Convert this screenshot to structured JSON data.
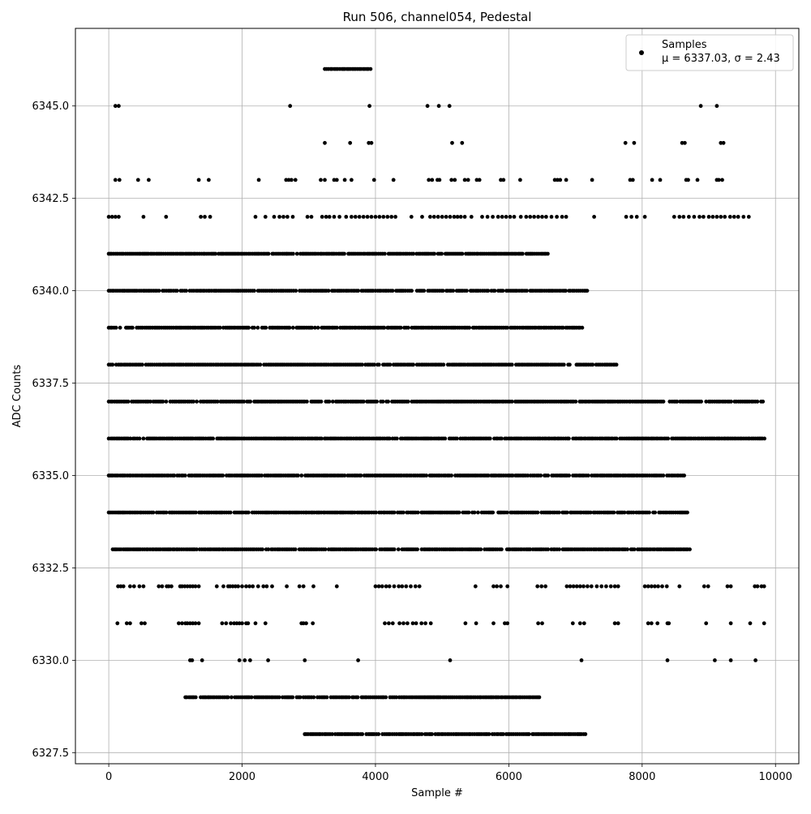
{
  "chart_data": {
    "type": "scatter",
    "title": "Run 506, channel054, Pedestal",
    "xlabel": "Sample #",
    "ylabel": "ADC Counts",
    "xlim": [
      -500,
      10350
    ],
    "ylim": [
      6327.2,
      6347.1
    ],
    "xticks": [
      0,
      2000,
      4000,
      6000,
      8000,
      10000
    ],
    "xtick_labels": [
      "0",
      "2000",
      "4000",
      "6000",
      "8000",
      "10000"
    ],
    "yticks": [
      6327.5,
      6330.0,
      6332.5,
      6335.0,
      6337.5,
      6340.0,
      6342.5,
      6345.0
    ],
    "ytick_labels": [
      "6327.5",
      "6330.0",
      "6332.5",
      "6335.0",
      "6337.5",
      "6340.0",
      "6342.5",
      "6345.0"
    ],
    "grid": true,
    "legend_position": "top-right",
    "legend": {
      "label": "Samples",
      "stats": "μ = 6337.03, σ = 2.43"
    },
    "series": [
      {
        "name": "Samples",
        "color": "#000000",
        "x_range": [
          0,
          9850
        ],
        "levels": [
          {
            "y": 6328,
            "x": [
              2940,
              7150
            ]
          },
          {
            "y": 6329,
            "x": [
              1150,
              1870,
              2950,
              6470
            ]
          },
          {
            "y": 6330,
            "x": [
              1220,
              1250,
              1400,
              1960,
              2040,
              2120,
              2390,
              2940,
              3740,
              5120,
              7090,
              8380,
              9090,
              9330,
              9700
            ]
          },
          {
            "y": 6331,
            "x": [
              130,
              270,
              320,
              490,
              540,
              1050,
              1100,
              1150,
              1180,
              1220,
              1260,
              1300,
              1350,
              1700,
              1760,
              1830,
              1880,
              1920,
              1960,
              2000,
              2060,
              2090,
              2200,
              2350,
              2890,
              2920,
              2960,
              3060,
              4140,
              4200,
              4260,
              4360,
              4420,
              4480,
              4560,
              4610,
              4690,
              4750,
              4830,
              5350,
              5510,
              5770,
              5940,
              5980,
              6440,
              6500,
              6960,
              7070,
              7130,
              7590,
              7640,
              8090,
              8140,
              8230,
              8380,
              8400,
              8960,
              9330,
              9620,
              9830
            ]
          },
          {
            "y": 6332,
            "x": [
              140,
              180,
              220,
              320,
              380,
              460,
              520,
              750,
              800,
              870,
              900,
              940,
              1070,
              1100,
              1140,
              1180,
              1220,
              1260,
              1300,
              1350,
              1620,
              1720,
              1790,
              1820,
              1860,
              1900,
              1940,
              2000,
              2060,
              2110,
              2160,
              2240,
              2320,
              2370,
              2450,
              2670,
              2860,
              2920,
              3070,
              3420,
              4000,
              4050,
              4100,
              4160,
              4210,
              4280,
              4350,
              4400,
              4460,
              4530,
              4600,
              4660,
              5500,
              5770,
              5820,
              5880,
              5980,
              6430,
              6490,
              6550,
              6870,
              6920,
              6970,
              7020,
              7070,
              7120,
              7180,
              7240,
              7320,
              7390,
              7460,
              7530,
              7590,
              7640,
              8040,
              8090,
              8140,
              8190,
              8240,
              8300,
              8370,
              8560,
              8930,
              8990,
              9280,
              9330,
              9690,
              9730,
              9790,
              9830
            ]
          },
          {
            "y": 6333,
            "x": [
              60,
              1840,
              2430,
              4290,
              4630,
              7400,
              8730
            ]
          },
          {
            "y": 6334,
            "x": [
              0,
              3000,
              3570,
              5100,
              5150,
              6200,
              8700
            ]
          },
          {
            "y": 6335,
            "x": [
              0,
              4200,
              6330,
              8630
            ]
          },
          {
            "y": 6336,
            "x": [
              0,
              9840
            ]
          },
          {
            "y": 6337,
            "x": [
              0,
              9840
            ]
          },
          {
            "y": 6338,
            "x": [
              0,
              1240,
              7620
            ]
          },
          {
            "y": 6339,
            "x": [
              0,
              7110
            ]
          },
          {
            "y": 6340,
            "x": [
              0,
              2220,
              7210
            ]
          },
          {
            "y": 6341,
            "x": [
              0,
              1180,
              1760,
              2120,
              4420,
              5000,
              6600
            ]
          },
          {
            "y": 6342,
            "x": [
              0,
              50,
              100,
              150,
              520,
              860,
              1380,
              1440,
              1520,
              2200,
              2350,
              2480,
              2560,
              2620,
              2680,
              2760,
              2980,
              3040,
              3200,
              3260,
              3310,
              3380,
              3460,
              3560,
              3640,
              3700,
              3760,
              3820,
              3880,
              3940,
              4000,
              4060,
              4120,
              4180,
              4240,
              4300,
              4540,
              4700,
              4820,
              4880,
              4940,
              5000,
              5060,
              5120,
              5180,
              5230,
              5280,
              5340,
              5440,
              5600,
              5680,
              5760,
              5840,
              5900,
              5960,
              6020,
              6080,
              6180,
              6260,
              6320,
              6380,
              6440,
              6500,
              6560,
              6640,
              6720,
              6800,
              6860,
              7280,
              7760,
              7840,
              7920,
              8040,
              8480,
              8560,
              8620,
              8700,
              8780,
              8860,
              8920,
              9000,
              9060,
              9120,
              9180,
              9240,
              9320,
              9380,
              9440,
              9520,
              9600
            ]
          },
          {
            "y": 6343,
            "x": [
              100,
              160,
              440,
              600,
              1350,
              1500,
              2250,
              2660,
              2700,
              2740,
              2800,
              3180,
              3240,
              3380,
              3420,
              3540,
              3640,
              3980,
              4270,
              4800,
              4850,
              4930,
              4960,
              5140,
              5190,
              5340,
              5390,
              5520,
              5560,
              5880,
              5920,
              6170,
              6690,
              6730,
              6770,
              6860,
              7250,
              7820,
              7860,
              8150,
              8270,
              8660,
              8690,
              8830,
              9120,
              9150,
              9200
            ]
          },
          {
            "y": 6344,
            "x": [
              3240,
              3620,
              3900,
              3940,
              5150,
              5300,
              7750,
              7880,
              8600,
              8640,
              9180,
              9220
            ]
          },
          {
            "y": 6345,
            "x": [
              100,
              150,
              2720,
              3910,
              4780,
              4950,
              5110,
              8880,
              9120
            ]
          },
          {
            "y": 6346,
            "x": [
              3240,
              3940
            ]
          }
        ]
      }
    ]
  }
}
